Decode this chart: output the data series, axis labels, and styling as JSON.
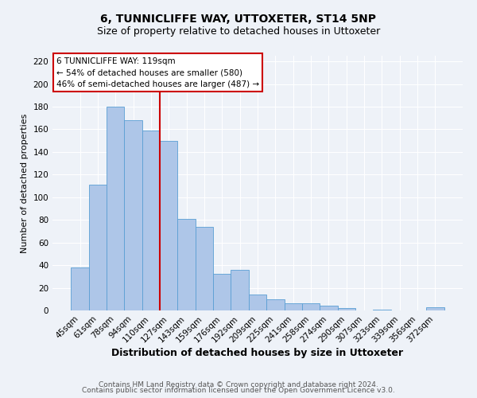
{
  "title": "6, TUNNICLIFFE WAY, UTTOXETER, ST14 5NP",
  "subtitle": "Size of property relative to detached houses in Uttoxeter",
  "xlabel": "Distribution of detached houses by size in Uttoxeter",
  "ylabel": "Number of detached properties",
  "bar_labels": [
    "45sqm",
    "61sqm",
    "78sqm",
    "94sqm",
    "110sqm",
    "127sqm",
    "143sqm",
    "159sqm",
    "176sqm",
    "192sqm",
    "209sqm",
    "225sqm",
    "241sqm",
    "258sqm",
    "274sqm",
    "290sqm",
    "307sqm",
    "323sqm",
    "339sqm",
    "356sqm",
    "372sqm"
  ],
  "bar_values": [
    38,
    111,
    180,
    168,
    159,
    150,
    81,
    74,
    32,
    36,
    14,
    10,
    6,
    6,
    4,
    2,
    0,
    1,
    0,
    0,
    3
  ],
  "bar_color": "#aec6e8",
  "bar_edge_color": "#5a9fd4",
  "vline_pos": 4.5,
  "vline_color": "#cc0000",
  "ylim": [
    0,
    225
  ],
  "yticks": [
    0,
    20,
    40,
    60,
    80,
    100,
    120,
    140,
    160,
    180,
    200,
    220
  ],
  "annotation_title": "6 TUNNICLIFFE WAY: 119sqm",
  "annotation_line1": "← 54% of detached houses are smaller (580)",
  "annotation_line2": "46% of semi-detached houses are larger (487) →",
  "annotation_box_facecolor": "#ffffff",
  "annotation_box_edgecolor": "#cc0000",
  "footer1": "Contains HM Land Registry data © Crown copyright and database right 2024.",
  "footer2": "Contains public sector information licensed under the Open Government Licence v3.0.",
  "background_color": "#eef2f8",
  "grid_color": "#ffffff",
  "title_fontsize": 10,
  "subtitle_fontsize": 9,
  "xlabel_fontsize": 9,
  "ylabel_fontsize": 8,
  "tick_fontsize": 7.5,
  "footer_fontsize": 6.5,
  "ann_fontsize": 7.5
}
